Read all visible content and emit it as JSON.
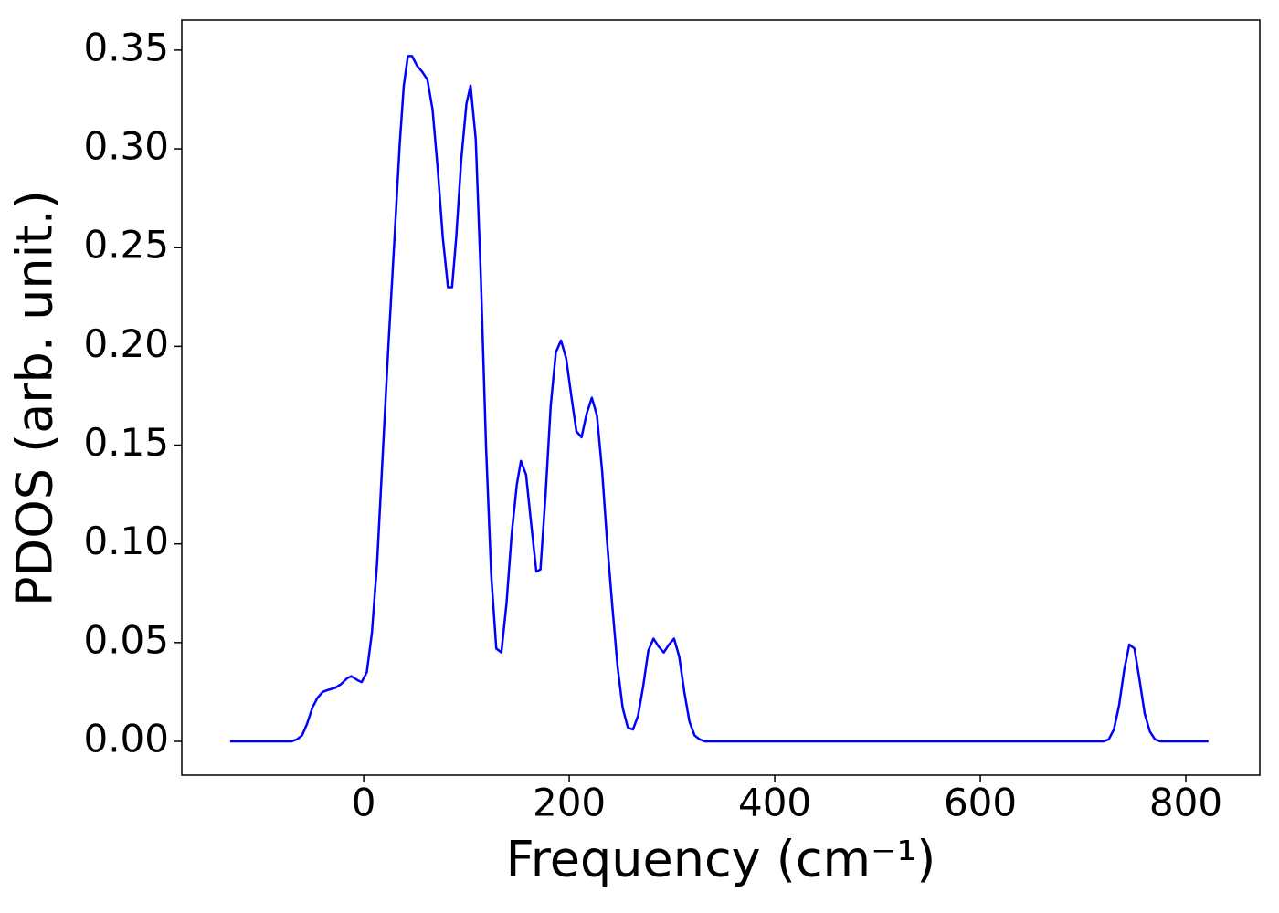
{
  "chart_data": {
    "type": "line",
    "xlabel": "Frequency (cm⁻¹)",
    "ylabel": "PDOS (arb. unit.)",
    "color": "#0000ff",
    "x": [
      -130,
      -70,
      -65,
      -60,
      -55,
      -50,
      -45,
      -40,
      -35,
      -28,
      -22,
      -16,
      -12,
      -6,
      -2,
      3,
      8,
      13,
      18,
      24,
      30,
      35,
      39,
      43,
      47,
      52,
      57,
      62,
      67,
      72,
      77,
      82,
      86,
      90,
      95,
      100,
      104,
      109,
      114,
      119,
      124,
      129,
      134,
      139,
      144,
      149,
      153,
      158,
      163,
      168,
      172,
      177,
      182,
      187,
      192,
      197,
      202,
      207,
      212,
      217,
      222,
      227,
      232,
      237,
      242,
      247,
      252,
      257,
      262,
      267,
      272,
      277,
      282,
      287,
      292,
      297,
      302,
      307,
      312,
      317,
      322,
      327,
      332,
      720,
      725,
      730,
      735,
      740,
      745,
      750,
      755,
      760,
      765,
      770,
      775,
      822
    ],
    "values": [
      0,
      0,
      0.001,
      0.003,
      0.009,
      0.017,
      0.022,
      0.025,
      0.026,
      0.027,
      0.029,
      0.032,
      0.033,
      0.031,
      0.03,
      0.035,
      0.055,
      0.09,
      0.14,
      0.2,
      0.255,
      0.302,
      0.332,
      0.347,
      0.347,
      0.342,
      0.339,
      0.335,
      0.32,
      0.29,
      0.255,
      0.23,
      0.23,
      0.255,
      0.295,
      0.323,
      0.332,
      0.305,
      0.235,
      0.15,
      0.085,
      0.047,
      0.045,
      0.07,
      0.105,
      0.13,
      0.142,
      0.135,
      0.11,
      0.086,
      0.087,
      0.125,
      0.17,
      0.197,
      0.203,
      0.194,
      0.175,
      0.157,
      0.154,
      0.166,
      0.174,
      0.165,
      0.137,
      0.1,
      0.068,
      0.038,
      0.017,
      0.007,
      0.006,
      0.013,
      0.028,
      0.046,
      0.052,
      0.048,
      0.045,
      0.049,
      0.052,
      0.043,
      0.025,
      0.01,
      0.003,
      0.001,
      0,
      0,
      0.001,
      0.006,
      0.018,
      0.036,
      0.049,
      0.047,
      0.031,
      0.014,
      0.005,
      0.001,
      0,
      0
    ],
    "xlim": [
      -177,
      872
    ],
    "ylim": [
      -0.0171,
      0.3652
    ],
    "xticks": [
      0,
      200,
      400,
      600,
      800
    ],
    "yticks": [
      {
        "value": 0,
        "label": "0.00"
      },
      {
        "value": 0.05,
        "label": "0.05"
      },
      {
        "value": 0.1,
        "label": "0.10"
      },
      {
        "value": 0.15,
        "label": "0.15"
      },
      {
        "value": 0.2,
        "label": "0.20"
      },
      {
        "value": 0.25,
        "label": "0.25"
      },
      {
        "value": 0.3,
        "label": "0.30"
      },
      {
        "value": 0.35,
        "label": "0.35"
      }
    ]
  }
}
